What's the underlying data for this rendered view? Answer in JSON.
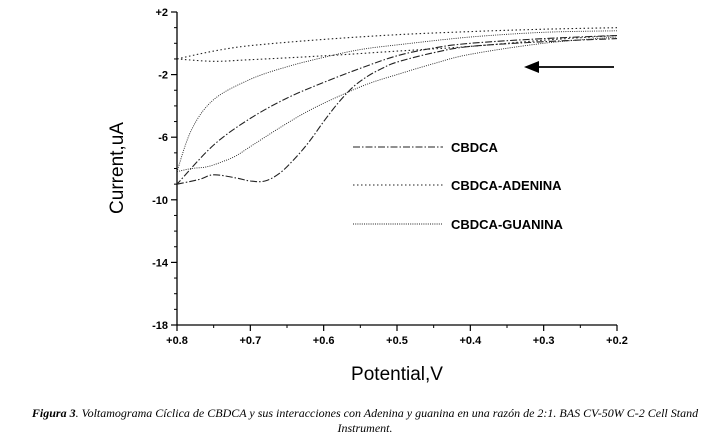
{
  "chart_data": {
    "type": "line",
    "xlabel": "Potential,V",
    "ylabel": "Current,uA",
    "xlim": [
      0.8,
      0.2
    ],
    "ylim": [
      -18,
      2
    ],
    "x_ticks": [
      "+0.8",
      "+0.7",
      "+0.6",
      "+0.5",
      "+0.4",
      "+0.3",
      "+0.2"
    ],
    "y_ticks": [
      "+2",
      "-2",
      "-6",
      "-10",
      "-14",
      "-18"
    ],
    "x_tick_values": [
      0.8,
      0.7,
      0.6,
      0.5,
      0.4,
      0.3,
      0.2
    ],
    "y_tick_values": [
      2,
      -2,
      -6,
      -10,
      -14,
      -18
    ],
    "legend_position": "right",
    "series": [
      {
        "name": "CBDCA",
        "style": "dash-dot",
        "forward": [
          [
            0.2,
            0.5
          ],
          [
            0.3,
            0.3
          ],
          [
            0.4,
            0.0
          ],
          [
            0.45,
            -0.3
          ],
          [
            0.5,
            -0.8
          ],
          [
            0.55,
            -1.6
          ],
          [
            0.6,
            -2.5
          ],
          [
            0.65,
            -3.5
          ],
          [
            0.7,
            -4.8
          ],
          [
            0.75,
            -6.5
          ],
          [
            0.8,
            -9.0
          ]
        ],
        "reverse": [
          [
            0.8,
            -9.0
          ],
          [
            0.77,
            -8.7
          ],
          [
            0.75,
            -8.4
          ],
          [
            0.72,
            -8.6
          ],
          [
            0.7,
            -8.8
          ],
          [
            0.68,
            -8.8
          ],
          [
            0.66,
            -8.3
          ],
          [
            0.64,
            -7.4
          ],
          [
            0.62,
            -6.3
          ],
          [
            0.6,
            -5.0
          ],
          [
            0.58,
            -3.8
          ],
          [
            0.56,
            -2.8
          ],
          [
            0.54,
            -2.1
          ],
          [
            0.52,
            -1.6
          ],
          [
            0.5,
            -1.2
          ],
          [
            0.45,
            -0.6
          ],
          [
            0.4,
            -0.2
          ],
          [
            0.3,
            0.1
          ],
          [
            0.2,
            0.3
          ]
        ]
      },
      {
        "name": "CBDCA-ADENINA",
        "style": "dotted",
        "forward": [
          [
            0.2,
            1.0
          ],
          [
            0.3,
            0.9
          ],
          [
            0.4,
            0.75
          ],
          [
            0.5,
            0.55
          ],
          [
            0.6,
            0.25
          ],
          [
            0.7,
            -0.15
          ],
          [
            0.75,
            -0.5
          ],
          [
            0.8,
            -1.0
          ]
        ],
        "reverse": [
          [
            0.8,
            -1.0
          ],
          [
            0.75,
            -1.15
          ],
          [
            0.7,
            -1.05
          ],
          [
            0.6,
            -0.8
          ],
          [
            0.5,
            -0.5
          ],
          [
            0.4,
            -0.2
          ],
          [
            0.3,
            0.2
          ],
          [
            0.2,
            0.5
          ]
        ]
      },
      {
        "name": "CBDCA-GUANINA",
        "style": "fine-dotted",
        "forward": [
          [
            0.2,
            0.8
          ],
          [
            0.3,
            0.7
          ],
          [
            0.4,
            0.4
          ],
          [
            0.5,
            -0.1
          ],
          [
            0.55,
            -0.4
          ],
          [
            0.6,
            -0.9
          ],
          [
            0.65,
            -1.5
          ],
          [
            0.7,
            -2.3
          ],
          [
            0.75,
            -3.6
          ],
          [
            0.78,
            -5.5
          ],
          [
            0.8,
            -8.2
          ]
        ],
        "reverse": [
          [
            0.8,
            -8.2
          ],
          [
            0.78,
            -8.0
          ],
          [
            0.76,
            -7.9
          ],
          [
            0.74,
            -7.6
          ],
          [
            0.72,
            -7.2
          ],
          [
            0.7,
            -6.6
          ],
          [
            0.66,
            -5.4
          ],
          [
            0.62,
            -4.3
          ],
          [
            0.58,
            -3.4
          ],
          [
            0.54,
            -2.6
          ],
          [
            0.5,
            -2.0
          ],
          [
            0.45,
            -1.3
          ],
          [
            0.4,
            -0.7
          ],
          [
            0.3,
            0.0
          ],
          [
            0.2,
            0.4
          ]
        ]
      }
    ],
    "annotation": "arrow pointing left (scan direction)"
  },
  "caption": {
    "label": "Figura 3",
    "text": ". Voltamograma Cíclica de  CBDCA y sus interacciones con Adenina  y  guanina en una razón de 2:1.  BAS CV-50W C-2 Cell Stand Instrument."
  },
  "colors": {
    "axis": "#000000",
    "series_line": "#222222"
  }
}
